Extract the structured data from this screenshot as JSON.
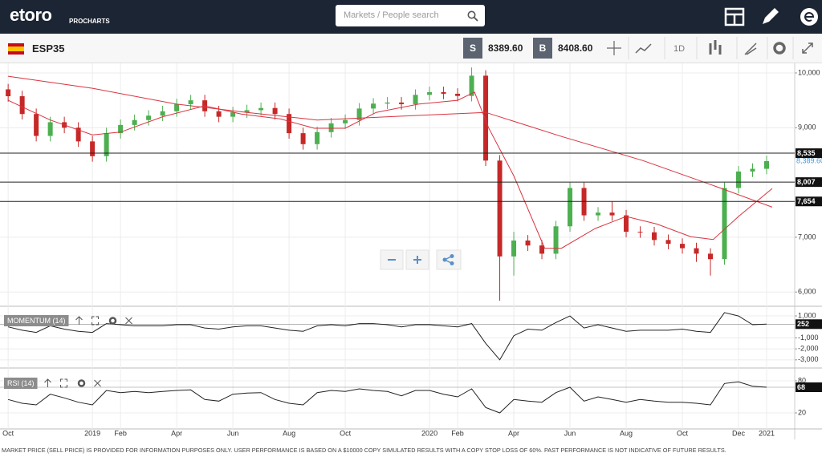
{
  "header": {
    "logo": "etoro",
    "product": "PROCHARTS",
    "search_placeholder": "Markets / People search"
  },
  "toolbar": {
    "symbol": "ESP35",
    "sell_label": "S",
    "sell": "8389.60",
    "buy_label": "B",
    "buy": "8408.60",
    "interval": "1D"
  },
  "chart_data": [
    {
      "type": "candlestick",
      "up_color": "#4caf50",
      "down_color": "#c62828",
      "x": [
        0,
        0.5,
        1,
        1.5,
        2,
        2.5,
        3,
        3.5,
        4,
        4.5,
        5,
        5.5,
        6,
        6.5,
        7,
        7.5,
        8,
        8.5,
        9,
        9.5,
        10,
        10.5,
        11,
        11.5,
        12,
        12.5,
        13,
        13.5,
        14,
        14.5,
        15,
        15.5,
        16,
        16.5,
        17,
        17.5,
        18,
        18.5,
        19,
        19.5,
        20,
        20.5,
        21,
        21.5,
        22,
        22.5,
        23,
        23.5,
        24,
        24.5,
        25,
        25.5,
        26,
        26.5,
        27
      ],
      "open": [
        9700,
        9575,
        9250,
        8850,
        9100,
        9000,
        8750,
        8480,
        8900,
        9050,
        9140,
        9220,
        9300,
        9430,
        9500,
        9300,
        9200,
        9280,
        9320,
        9360,
        9250,
        8900,
        8700,
        8920,
        9080,
        9140,
        9350,
        9440,
        9460,
        9430,
        9600,
        9650,
        9620,
        9580,
        9950,
        8400,
        6650,
        6940,
        6850,
        6700,
        7200,
        7900,
        7400,
        7450,
        7400,
        7100,
        7090,
        6950,
        6880,
        6800,
        6700,
        6600,
        7900,
        8200,
        8250
      ],
      "high": [
        9800,
        9675,
        9350,
        9200,
        9200,
        9100,
        8850,
        9000,
        9150,
        9240,
        9320,
        9400,
        9530,
        9600,
        9600,
        9400,
        9380,
        9420,
        9460,
        9460,
        9350,
        9000,
        9020,
        9180,
        9240,
        9450,
        9540,
        9560,
        9560,
        9700,
        9750,
        9750,
        9720,
        10100,
        10050,
        8500,
        7100,
        7040,
        6950,
        7300,
        8000,
        8000,
        7550,
        7650,
        7500,
        7200,
        7190,
        7050,
        6980,
        6900,
        6800,
        8000,
        8300,
        8350,
        8490
      ],
      "low": [
        9475,
        9150,
        8750,
        8750,
        8900,
        8650,
        8380,
        8380,
        8800,
        8950,
        9040,
        9120,
        9200,
        9330,
        9200,
        9100,
        9100,
        9180,
        9220,
        9150,
        8800,
        8600,
        8600,
        8820,
        8980,
        9040,
        9250,
        9340,
        9330,
        9330,
        9500,
        9520,
        9480,
        9480,
        8300,
        5840,
        6300,
        6750,
        6600,
        6600,
        7100,
        7300,
        7300,
        7300,
        7000,
        6990,
        6850,
        6780,
        6700,
        6550,
        6300,
        6500,
        7800,
        8100,
        8150
      ],
      "close": [
        9575,
        9250,
        8850,
        9100,
        9000,
        8750,
        8480,
        8900,
        9050,
        9140,
        9220,
        9300,
        9430,
        9500,
        9300,
        9200,
        9280,
        9320,
        9360,
        9250,
        8900,
        8700,
        8920,
        9080,
        9140,
        9350,
        9440,
        9460,
        9430,
        9600,
        9650,
        9620,
        9580,
        9950,
        8400,
        6650,
        6940,
        6850,
        6700,
        7200,
        7900,
        7400,
        7450,
        7400,
        7100,
        7090,
        6950,
        6880,
        6800,
        6700,
        6600,
        7900,
        8200,
        8250,
        8390
      ],
      "series": [
        {
          "color": "#d9333f",
          "x": [
            0,
            3,
            6,
            8.5,
            11,
            14,
            17,
            19.7,
            22.6,
            25.4,
            27.2
          ],
          "values": [
            9940,
            9720,
            9430,
            9280,
            9140,
            9210,
            9280,
            8840,
            8400,
            7890,
            7550
          ]
        },
        {
          "color": "#d9333f",
          "x": [
            0,
            1.5,
            3,
            4,
            5.5,
            7,
            8.3,
            9.7,
            10.9,
            12,
            13.1,
            14.6,
            16,
            16.6,
            17.1,
            18,
            19.1,
            19.7,
            20.9,
            22,
            23.1,
            24.3,
            25.1,
            26,
            27.2
          ],
          "values": [
            9500,
            9140,
            8870,
            8920,
            9200,
            9400,
            9250,
            9160,
            8990,
            8990,
            9280,
            9430,
            9500,
            9650,
            9000,
            8120,
            6800,
            6800,
            7160,
            7380,
            7240,
            7010,
            6960,
            7380,
            7890
          ]
        }
      ],
      "levels": [
        {
          "value": 8535,
          "label": "8,535"
        },
        {
          "value": 8007,
          "label": "8,007"
        },
        {
          "value": 7654,
          "label": "7,654"
        }
      ],
      "last_price": {
        "value": 8389.6,
        "label": "8,389.60"
      },
      "xlim": [
        -0.29,
        28
      ],
      "ylim": [
        5740,
        10190
      ],
      "xticks": [
        {
          "value": 0,
          "label": "Oct"
        },
        {
          "value": 3,
          "label": "2019"
        },
        {
          "value": 4,
          "label": "Feb"
        },
        {
          "value": 6,
          "label": "Apr"
        },
        {
          "value": 8,
          "label": "Jun"
        },
        {
          "value": 10,
          "label": "Aug"
        },
        {
          "value": 12,
          "label": "Oct"
        },
        {
          "value": 15,
          "label": "2020"
        },
        {
          "value": 16,
          "label": "Feb"
        },
        {
          "value": 18,
          "label": "Apr"
        },
        {
          "value": 20,
          "label": "Jun"
        },
        {
          "value": 22,
          "label": "Aug"
        },
        {
          "value": 24,
          "label": "Oct"
        },
        {
          "value": 26,
          "label": "Dec"
        },
        {
          "value": 27,
          "label": "2021"
        }
      ],
      "yticks": [
        {
          "value": 10000,
          "label": "10,000"
        },
        {
          "value": 9000,
          "label": "9,000"
        },
        {
          "value": 7000,
          "label": "7,000"
        },
        {
          "value": 6000,
          "label": "6,000"
        }
      ]
    },
    {
      "type": "line",
      "title": "MOMENTUM (14)",
      "color": "#222222",
      "x": [
        0,
        0.5,
        1,
        1.5,
        2,
        2.5,
        3,
        3.5,
        4,
        4.5,
        5,
        5.5,
        6,
        6.5,
        7,
        7.5,
        8,
        8.5,
        9,
        9.5,
        10,
        10.5,
        11,
        11.5,
        12,
        12.5,
        13,
        13.5,
        14,
        14.5,
        15,
        15.5,
        16,
        16.5,
        17,
        17.5,
        18,
        18.5,
        19,
        19.5,
        20,
        20.5,
        21,
        21.5,
        22,
        22.5,
        23,
        23.5,
        24,
        24.5,
        25,
        25.5,
        26,
        26.5,
        27
      ],
      "values": [
        0,
        -300,
        -500,
        100,
        -200,
        -400,
        -500,
        300,
        200,
        100,
        100,
        100,
        200,
        200,
        -100,
        -200,
        0,
        100,
        100,
        -100,
        -300,
        -400,
        100,
        200,
        100,
        300,
        300,
        200,
        0,
        200,
        200,
        100,
        0,
        300,
        -1500,
        -3000,
        -800,
        -200,
        -300,
        400,
        1000,
        -100,
        200,
        -100,
        -400,
        -300,
        -300,
        -300,
        -200,
        -400,
        -500,
        1300,
        1000,
        200,
        252
      ],
      "xlim": [
        -0.29,
        28
      ],
      "ylim": [
        -3670,
        1880
      ],
      "yticks": [
        {
          "value": 1000,
          "label": "1,000"
        },
        {
          "value": -1000,
          "label": "-1,000"
        },
        {
          "value": -2000,
          "label": "-2,000"
        },
        {
          "value": -3000,
          "label": "-3,000"
        }
      ]
    },
    {
      "type": "line",
      "title": "RSI (14)",
      "color": "#222222",
      "x": [
        0,
        0.5,
        1,
        1.5,
        2,
        2.5,
        3,
        3.5,
        4,
        4.5,
        5,
        5.5,
        6,
        6.5,
        7,
        7.5,
        8,
        8.5,
        9,
        9.5,
        10,
        10.5,
        11,
        11.5,
        12,
        12.5,
        13,
        13.5,
        14,
        14.5,
        15,
        15.5,
        16,
        16.5,
        17,
        17.5,
        18,
        18.5,
        19,
        19.5,
        20,
        20.5,
        21,
        21.5,
        22,
        22.5,
        23,
        23.5,
        24,
        24.5,
        25,
        25.5,
        26,
        26.5,
        27
      ],
      "values": [
        45,
        38,
        35,
        55,
        48,
        40,
        35,
        62,
        58,
        60,
        58,
        60,
        62,
        63,
        45,
        42,
        55,
        57,
        58,
        45,
        38,
        35,
        58,
        62,
        60,
        65,
        62,
        60,
        52,
        62,
        62,
        55,
        50,
        65,
        30,
        20,
        45,
        42,
        40,
        58,
        68,
        42,
        50,
        45,
        40,
        45,
        42,
        40,
        40,
        38,
        35,
        75,
        78,
        70,
        68
      ],
      "xlim": [
        -0.29,
        28
      ],
      "ylim": [
        -10,
        102.5
      ],
      "yticks": [
        80,
        20
      ]
    }
  ],
  "footer": "MARKET PRICE (SELL PRICE) IS PROVIDED FOR INFORMATION PURPOSES ONLY. USER PERFORMANCE IS BASED ON A $10000 COPY SIMULATED RESULTS WITH A COPY STOP LOSS OF 60%. PAST PERFORMANCE IS NOT INDICATIVE OF FUTURE RESULTS."
}
